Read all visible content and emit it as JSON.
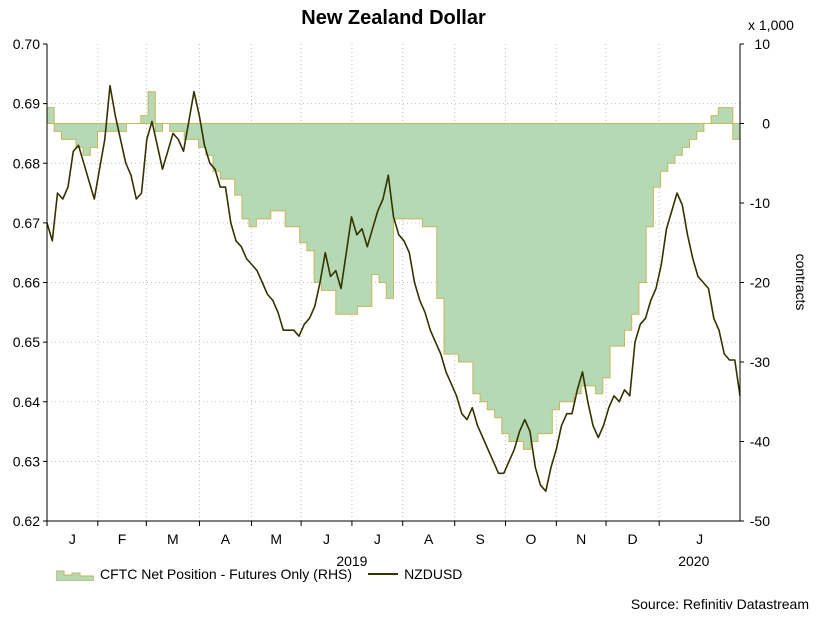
{
  "chart_data": {
    "type": "line",
    "title": "New Zealand Dollar",
    "left_axis": {
      "min": 0.62,
      "max": 0.7,
      "ticks": [
        0.62,
        0.63,
        0.64,
        0.65,
        0.66,
        0.67,
        0.68,
        0.69,
        0.7
      ],
      "tick_labels": [
        "0.62",
        "0.63",
        "0.64",
        "0.65",
        "0.66",
        "0.67",
        "0.68",
        "0.69",
        "0.70"
      ]
    },
    "right_axis": {
      "min": -50,
      "max": 10,
      "ticks": [
        -50,
        -40,
        -30,
        -20,
        -10,
        0,
        10
      ],
      "tick_labels": [
        "-50",
        "-40",
        "-30",
        "-20",
        "-10",
        "0",
        "10"
      ],
      "multiplier_label": "x 1,000",
      "label": "contracts"
    },
    "x_axis": {
      "months": [
        "J",
        "F",
        "M",
        "A",
        "M",
        "J",
        "J",
        "A",
        "S",
        "O",
        "N",
        "D",
        "J"
      ],
      "month_start_index": [
        0,
        4.4,
        8.6,
        13.2,
        17.7,
        22,
        26.4,
        30.8,
        35.3,
        39.7,
        44.1,
        48.4,
        53
      ],
      "year_labels": [
        {
          "label": "2019",
          "at": 26.4
        },
        {
          "label": "2020",
          "at": 56
        }
      ],
      "n_weeks": 60
    },
    "series": [
      {
        "name": "CFTC Net Position - Futures Only (RHS)",
        "type": "area",
        "axis": "right",
        "color": "#b5d9b5",
        "stroke": "#c8b55a",
        "values": [
          2,
          -1,
          -2,
          -2,
          -3,
          -4,
          -3,
          -1,
          -1,
          -1,
          -1,
          0,
          0,
          1,
          4,
          -1,
          0,
          -1,
          -1,
          -2,
          -2,
          -3,
          -4,
          -6,
          -7,
          -7,
          -9,
          -12,
          -13,
          -12,
          -12,
          -11,
          -11,
          -13,
          -13,
          -15,
          -16,
          -20,
          -21,
          -21,
          -24,
          -24,
          -24,
          -23,
          -23,
          -19,
          -20,
          -22,
          -12,
          -12,
          -12,
          -12,
          -13,
          -13,
          -22,
          -29,
          -29,
          -30,
          -30,
          -34,
          -35,
          -36,
          -37,
          -39,
          -40,
          -40,
          -41,
          -40,
          -39,
          -39,
          -36,
          -35,
          -35,
          -34,
          -33,
          -33,
          -34,
          -32,
          -28,
          -28,
          -26,
          -24,
          -20,
          -13,
          -8,
          -6,
          -5,
          -4,
          -3,
          -2,
          -1,
          0,
          1,
          2,
          2,
          -2
        ]
      },
      {
        "name": "NZDUSD",
        "type": "line",
        "axis": "left",
        "color": "#333300",
        "values": [
          0.67,
          0.667,
          0.675,
          0.674,
          0.676,
          0.682,
          0.683,
          0.68,
          0.677,
          0.674,
          0.679,
          0.684,
          0.693,
          0.688,
          0.684,
          0.68,
          0.678,
          0.674,
          0.675,
          0.684,
          0.687,
          0.683,
          0.679,
          0.682,
          0.685,
          0.684,
          0.682,
          0.687,
          0.692,
          0.688,
          0.683,
          0.68,
          0.679,
          0.676,
          0.676,
          0.67,
          0.667,
          0.666,
          0.664,
          0.663,
          0.662,
          0.66,
          0.658,
          0.657,
          0.655,
          0.652,
          0.652,
          0.652,
          0.651,
          0.653,
          0.654,
          0.656,
          0.66,
          0.665,
          0.661,
          0.662,
          0.659,
          0.665,
          0.671,
          0.668,
          0.669,
          0.666,
          0.669,
          0.672,
          0.674,
          0.678,
          0.671,
          0.668,
          0.667,
          0.665,
          0.66,
          0.657,
          0.655,
          0.652,
          0.65,
          0.648,
          0.645,
          0.643,
          0.641,
          0.638,
          0.637,
          0.639,
          0.636,
          0.634,
          0.632,
          0.63,
          0.628,
          0.628,
          0.63,
          0.632,
          0.635,
          0.637,
          0.635,
          0.629,
          0.626,
          0.625,
          0.629,
          0.632,
          0.636,
          0.638,
          0.638,
          0.642,
          0.645,
          0.64,
          0.636,
          0.634,
          0.636,
          0.639,
          0.641,
          0.64,
          0.642,
          0.641,
          0.65,
          0.653,
          0.654,
          0.657,
          0.659,
          0.663,
          0.669,
          0.672,
          0.675,
          0.673,
          0.668,
          0.664,
          0.661,
          0.66,
          0.659,
          0.654,
          0.652,
          0.648,
          0.647,
          0.647,
          0.641
        ]
      }
    ]
  },
  "legend": {
    "area_label": "CFTC Net Position - Futures Only (RHS)",
    "line_label": "NZDUSD"
  },
  "source": "Source: Refinitiv Datastream"
}
